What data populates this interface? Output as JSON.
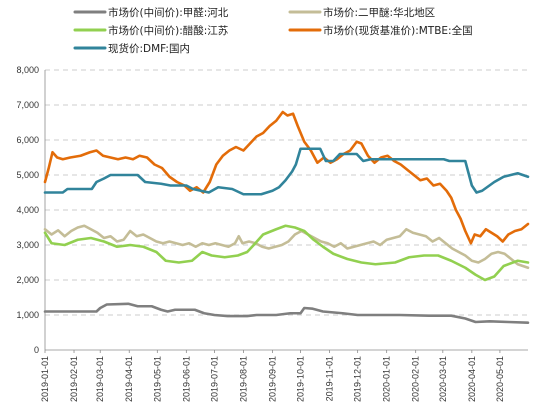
{
  "chart_data": {
    "type": "line",
    "title": "",
    "xlabel": "",
    "ylabel": "",
    "ylim": [
      0,
      8000
    ],
    "yticks": [
      0,
      1000,
      2000,
      3000,
      4000,
      5000,
      6000,
      7000,
      8000
    ],
    "ytick_labels": [
      "0",
      "1,000",
      "2,000",
      "3,000",
      "4,000",
      "5,000",
      "6,000",
      "7,000",
      "8,000"
    ],
    "xlim": [
      "2019-01-01",
      "2020-05-31"
    ],
    "xtick_labels": [
      "2019-01-01",
      "2019-02-01",
      "2019-03-01",
      "2019-04-01",
      "2019-05-01",
      "2019-06-01",
      "2019-07-01",
      "2019-08-01",
      "2019-09-01",
      "2019-10-01",
      "2019-11-01",
      "2019-12-01",
      "2020-01-01",
      "2020-02-01",
      "2020-03-01",
      "2020-04-01",
      "2020-05-01"
    ],
    "grid": "horizontal-dashed",
    "legend_position": "top",
    "series": [
      {
        "name": "市场价(中间价):甲醛:河北",
        "color": "#7f7f7f",
        "points": [
          [
            "2019-01-01",
            1100
          ],
          [
            "2019-02-25",
            1100
          ],
          [
            "2019-03-01",
            1200
          ],
          [
            "2019-03-08",
            1300
          ],
          [
            "2019-03-31",
            1320
          ],
          [
            "2019-04-10",
            1250
          ],
          [
            "2019-04-25",
            1250
          ],
          [
            "2019-05-05",
            1150
          ],
          [
            "2019-05-12",
            1100
          ],
          [
            "2019-05-20",
            1150
          ],
          [
            "2019-06-10",
            1150
          ],
          [
            "2019-06-20",
            1050
          ],
          [
            "2019-07-01",
            1000
          ],
          [
            "2019-07-15",
            970
          ],
          [
            "2019-08-05",
            970
          ],
          [
            "2019-08-15",
            1000
          ],
          [
            "2019-09-05",
            1000
          ],
          [
            "2019-09-20",
            1050
          ],
          [
            "2019-10-01",
            1050
          ],
          [
            "2019-10-05",
            1200
          ],
          [
            "2019-10-14",
            1180
          ],
          [
            "2019-10-25",
            1100
          ],
          [
            "2019-11-15",
            1050
          ],
          [
            "2019-12-01",
            1000
          ],
          [
            "2020-01-15",
            1000
          ],
          [
            "2020-02-15",
            980
          ],
          [
            "2020-03-10",
            980
          ],
          [
            "2020-03-25",
            900
          ],
          [
            "2020-04-05",
            800
          ],
          [
            "2020-04-20",
            820
          ],
          [
            "2020-05-10",
            800
          ],
          [
            "2020-05-31",
            780
          ]
        ]
      },
      {
        "name": "市场价:二甲醚:华北地区",
        "color": "#c4bd97",
        "points": [
          [
            "2019-01-01",
            3450
          ],
          [
            "2019-01-08",
            3300
          ],
          [
            "2019-01-15",
            3420
          ],
          [
            "2019-01-22",
            3250
          ],
          [
            "2019-01-29",
            3400
          ],
          [
            "2019-02-05",
            3500
          ],
          [
            "2019-02-12",
            3550
          ],
          [
            "2019-02-19",
            3450
          ],
          [
            "2019-02-26",
            3350
          ],
          [
            "2019-03-05",
            3200
          ],
          [
            "2019-03-12",
            3250
          ],
          [
            "2019-03-19",
            3100
          ],
          [
            "2019-03-26",
            3150
          ],
          [
            "2019-04-02",
            3400
          ],
          [
            "2019-04-09",
            3250
          ],
          [
            "2019-04-16",
            3300
          ],
          [
            "2019-04-23",
            3200
          ],
          [
            "2019-04-30",
            3100
          ],
          [
            "2019-05-07",
            3050
          ],
          [
            "2019-05-14",
            3100
          ],
          [
            "2019-05-21",
            3050
          ],
          [
            "2019-05-28",
            3000
          ],
          [
            "2019-06-04",
            3050
          ],
          [
            "2019-06-11",
            2950
          ],
          [
            "2019-06-18",
            3050
          ],
          [
            "2019-06-25",
            3000
          ],
          [
            "2019-07-02",
            3050
          ],
          [
            "2019-07-09",
            3000
          ],
          [
            "2019-07-16",
            2950
          ],
          [
            "2019-07-23",
            3050
          ],
          [
            "2019-07-27",
            3250
          ],
          [
            "2019-07-31",
            3050
          ],
          [
            "2019-08-07",
            3100
          ],
          [
            "2019-08-14",
            3050
          ],
          [
            "2019-08-21",
            2950
          ],
          [
            "2019-08-28",
            2900
          ],
          [
            "2019-09-04",
            2950
          ],
          [
            "2019-09-11",
            3000
          ],
          [
            "2019-09-18",
            3100
          ],
          [
            "2019-09-25",
            3300
          ],
          [
            "2019-10-02",
            3400
          ],
          [
            "2019-10-09",
            3300
          ],
          [
            "2019-10-16",
            3200
          ],
          [
            "2019-10-23",
            3100
          ],
          [
            "2019-10-30",
            3050
          ],
          [
            "2019-11-06",
            2950
          ],
          [
            "2019-11-13",
            3050
          ],
          [
            "2019-11-20",
            2900
          ],
          [
            "2019-11-27",
            2950
          ],
          [
            "2019-12-04",
            3000
          ],
          [
            "2019-12-11",
            3050
          ],
          [
            "2019-12-18",
            3100
          ],
          [
            "2019-12-25",
            3000
          ],
          [
            "2020-01-01",
            3150
          ],
          [
            "2020-01-08",
            3200
          ],
          [
            "2020-01-15",
            3250
          ],
          [
            "2020-01-22",
            3450
          ],
          [
            "2020-01-29",
            3350
          ],
          [
            "2020-02-05",
            3300
          ],
          [
            "2020-02-12",
            3250
          ],
          [
            "2020-02-19",
            3100
          ],
          [
            "2020-02-26",
            3200
          ],
          [
            "2020-03-04",
            3050
          ],
          [
            "2020-03-11",
            2900
          ],
          [
            "2020-03-18",
            2800
          ],
          [
            "2020-03-25",
            2700
          ],
          [
            "2020-04-01",
            2550
          ],
          [
            "2020-04-08",
            2500
          ],
          [
            "2020-04-15",
            2600
          ],
          [
            "2020-04-22",
            2750
          ],
          [
            "2020-04-29",
            2800
          ],
          [
            "2020-05-06",
            2750
          ],
          [
            "2020-05-13",
            2600
          ],
          [
            "2020-05-20",
            2450
          ],
          [
            "2020-05-31",
            2350
          ]
        ]
      },
      {
        "name": "市场价(中间价):醋酸:江苏",
        "color": "#92d050",
        "points": [
          [
            "2019-01-01",
            3350
          ],
          [
            "2019-01-08",
            3050
          ],
          [
            "2019-01-22",
            3000
          ],
          [
            "2019-02-05",
            3150
          ],
          [
            "2019-02-19",
            3200
          ],
          [
            "2019-03-05",
            3100
          ],
          [
            "2019-03-19",
            2950
          ],
          [
            "2019-04-02",
            3000
          ],
          [
            "2019-04-16",
            2950
          ],
          [
            "2019-04-30",
            2800
          ],
          [
            "2019-05-10",
            2550
          ],
          [
            "2019-05-24",
            2500
          ],
          [
            "2019-06-07",
            2550
          ],
          [
            "2019-06-18",
            2800
          ],
          [
            "2019-06-28",
            2700
          ],
          [
            "2019-07-12",
            2650
          ],
          [
            "2019-07-26",
            2700
          ],
          [
            "2019-08-05",
            2800
          ],
          [
            "2019-08-12",
            3000
          ],
          [
            "2019-08-22",
            3300
          ],
          [
            "2019-09-05",
            3450
          ],
          [
            "2019-09-15",
            3550
          ],
          [
            "2019-09-25",
            3500
          ],
          [
            "2019-10-05",
            3400
          ],
          [
            "2019-10-15",
            3150
          ],
          [
            "2019-10-25",
            2950
          ],
          [
            "2019-11-05",
            2750
          ],
          [
            "2019-11-20",
            2600
          ],
          [
            "2019-12-05",
            2500
          ],
          [
            "2019-12-20",
            2450
          ],
          [
            "2020-01-10",
            2500
          ],
          [
            "2020-01-25",
            2650
          ],
          [
            "2020-02-10",
            2700
          ],
          [
            "2020-02-25",
            2700
          ],
          [
            "2020-03-10",
            2550
          ],
          [
            "2020-03-25",
            2350
          ],
          [
            "2020-04-05",
            2150
          ],
          [
            "2020-04-15",
            2000
          ],
          [
            "2020-04-25",
            2100
          ],
          [
            "2020-05-05",
            2400
          ],
          [
            "2020-05-20",
            2550
          ],
          [
            "2020-05-31",
            2500
          ]
        ]
      },
      {
        "name": "市场价(现货基准价):MTBE:全国",
        "color": "#e36c09",
        "points": [
          [
            "2019-01-01",
            4800
          ],
          [
            "2019-01-05",
            5200
          ],
          [
            "2019-01-09",
            5650
          ],
          [
            "2019-01-14",
            5500
          ],
          [
            "2019-01-20",
            5450
          ],
          [
            "2019-01-28",
            5500
          ],
          [
            "2019-02-08",
            5550
          ],
          [
            "2019-02-18",
            5650
          ],
          [
            "2019-02-25",
            5700
          ],
          [
            "2019-03-04",
            5550
          ],
          [
            "2019-03-12",
            5500
          ],
          [
            "2019-03-20",
            5450
          ],
          [
            "2019-03-28",
            5500
          ],
          [
            "2019-04-05",
            5450
          ],
          [
            "2019-04-12",
            5550
          ],
          [
            "2019-04-20",
            5500
          ],
          [
            "2019-04-28",
            5300
          ],
          [
            "2019-05-06",
            5200
          ],
          [
            "2019-05-14",
            4950
          ],
          [
            "2019-05-22",
            4800
          ],
          [
            "2019-05-30",
            4700
          ],
          [
            "2019-06-05",
            4550
          ],
          [
            "2019-06-12",
            4650
          ],
          [
            "2019-06-19",
            4500
          ],
          [
            "2019-06-26",
            4800
          ],
          [
            "2019-07-03",
            5300
          ],
          [
            "2019-07-10",
            5550
          ],
          [
            "2019-07-17",
            5700
          ],
          [
            "2019-07-24",
            5800
          ],
          [
            "2019-08-01",
            5700
          ],
          [
            "2019-08-08",
            5900
          ],
          [
            "2019-08-15",
            6100
          ],
          [
            "2019-08-22",
            6200
          ],
          [
            "2019-08-29",
            6400
          ],
          [
            "2019-09-05",
            6550
          ],
          [
            "2019-09-12",
            6800
          ],
          [
            "2019-09-17",
            6700
          ],
          [
            "2019-09-23",
            6750
          ],
          [
            "2019-09-28",
            6400
          ],
          [
            "2019-10-05",
            5950
          ],
          [
            "2019-10-12",
            5700
          ],
          [
            "2019-10-19",
            5350
          ],
          [
            "2019-10-26",
            5500
          ],
          [
            "2019-11-02",
            5350
          ],
          [
            "2019-11-09",
            5450
          ],
          [
            "2019-11-16",
            5600
          ],
          [
            "2019-11-23",
            5700
          ],
          [
            "2019-11-30",
            5950
          ],
          [
            "2019-12-05",
            5900
          ],
          [
            "2019-12-12",
            5550
          ],
          [
            "2019-12-19",
            5350
          ],
          [
            "2019-12-26",
            5500
          ],
          [
            "2020-01-02",
            5550
          ],
          [
            "2020-01-09",
            5400
          ],
          [
            "2020-01-16",
            5300
          ],
          [
            "2020-01-23",
            5150
          ],
          [
            "2020-01-30",
            5000
          ],
          [
            "2020-02-06",
            4850
          ],
          [
            "2020-02-13",
            4900
          ],
          [
            "2020-02-20",
            4700
          ],
          [
            "2020-02-27",
            4750
          ],
          [
            "2020-03-05",
            4550
          ],
          [
            "2020-03-10",
            4350
          ],
          [
            "2020-03-15",
            4000
          ],
          [
            "2020-03-20",
            3750
          ],
          [
            "2020-03-25",
            3400
          ],
          [
            "2020-03-31",
            3050
          ],
          [
            "2020-04-04",
            3300
          ],
          [
            "2020-04-10",
            3250
          ],
          [
            "2020-04-16",
            3450
          ],
          [
            "2020-04-22",
            3350
          ],
          [
            "2020-04-28",
            3250
          ],
          [
            "2020-05-04",
            3100
          ],
          [
            "2020-05-10",
            3300
          ],
          [
            "2020-05-17",
            3400
          ],
          [
            "2020-05-24",
            3450
          ],
          [
            "2020-05-31",
            3600
          ]
        ]
      },
      {
        "name": "现货价:DMF:国内",
        "color": "#31849b",
        "points": [
          [
            "2019-01-01",
            4500
          ],
          [
            "2019-01-20",
            4500
          ],
          [
            "2019-01-25",
            4600
          ],
          [
            "2019-02-20",
            4600
          ],
          [
            "2019-02-25",
            4800
          ],
          [
            "2019-03-05",
            4900
          ],
          [
            "2019-03-12",
            5000
          ],
          [
            "2019-04-10",
            5000
          ],
          [
            "2019-04-18",
            4800
          ],
          [
            "2019-05-05",
            4750
          ],
          [
            "2019-05-15",
            4700
          ],
          [
            "2019-06-01",
            4700
          ],
          [
            "2019-06-08",
            4600
          ],
          [
            "2019-06-25",
            4500
          ],
          [
            "2019-07-05",
            4650
          ],
          [
            "2019-07-20",
            4600
          ],
          [
            "2019-08-01",
            4450
          ],
          [
            "2019-08-20",
            4450
          ],
          [
            "2019-09-01",
            4550
          ],
          [
            "2019-09-08",
            4650
          ],
          [
            "2019-09-15",
            4850
          ],
          [
            "2019-09-22",
            5100
          ],
          [
            "2019-09-26",
            5300
          ],
          [
            "2019-10-01",
            5750
          ],
          [
            "2019-10-22",
            5750
          ],
          [
            "2019-10-28",
            5400
          ],
          [
            "2019-11-05",
            5400
          ],
          [
            "2019-11-12",
            5600
          ],
          [
            "2019-11-30",
            5600
          ],
          [
            "2019-12-07",
            5400
          ],
          [
            "2019-12-15",
            5450
          ],
          [
            "2020-03-02",
            5450
          ],
          [
            "2020-03-08",
            5400
          ],
          [
            "2020-03-25",
            5400
          ],
          [
            "2020-04-01",
            4700
          ],
          [
            "2020-04-06",
            4500
          ],
          [
            "2020-04-12",
            4550
          ],
          [
            "2020-04-25",
            4800
          ],
          [
            "2020-05-05",
            4950
          ],
          [
            "2020-05-20",
            5050
          ],
          [
            "2020-05-31",
            4950
          ]
        ]
      }
    ]
  }
}
